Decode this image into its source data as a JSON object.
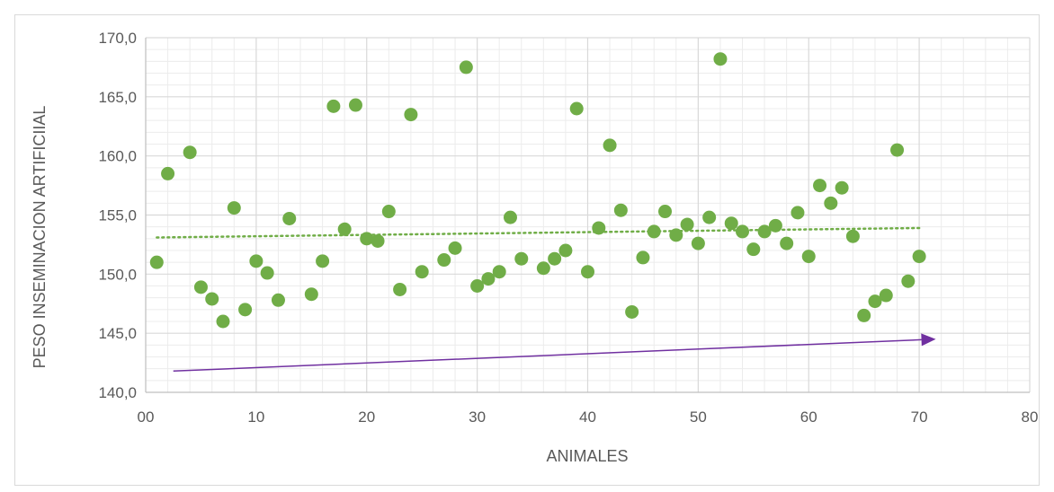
{
  "chart_data": {
    "type": "scatter",
    "xlabel": "ANIMALES",
    "ylabel": "PESO INSEMINACION ARTIFICIIAL",
    "xlim": [
      0,
      80
    ],
    "ylim": [
      140,
      170
    ],
    "x_ticks": [
      "00",
      "10",
      "20",
      "30",
      "40",
      "50",
      "60",
      "70",
      "80"
    ],
    "y_ticks": [
      "140,0",
      "145,0",
      "150,0",
      "155,0",
      "160,0",
      "165,0",
      "170,0"
    ],
    "grid": true,
    "legend": "none",
    "colors": {
      "points": "#70ad47",
      "trendline": "#70ad47",
      "arrow": "#7030a0",
      "grid": "#d9d9d9",
      "axis_text": "#595959"
    },
    "series": [
      {
        "x": [
          1,
          2,
          4,
          5,
          6,
          7,
          8,
          9,
          10,
          11,
          12,
          13,
          15,
          16,
          17,
          18,
          19,
          20,
          21,
          22,
          23,
          24,
          25,
          27,
          28,
          29,
          30,
          31,
          32,
          33,
          34,
          36,
          37,
          38,
          39,
          40,
          41,
          42,
          43,
          44,
          45,
          46,
          47,
          48,
          49,
          50,
          51,
          52,
          53,
          54,
          55,
          56,
          57,
          58,
          59,
          60,
          61,
          62,
          63,
          64,
          65,
          66,
          67,
          68,
          69,
          70
        ],
        "y": [
          151.0,
          158.5,
          160.3,
          148.9,
          147.9,
          146.0,
          155.6,
          147.0,
          151.1,
          150.1,
          147.8,
          154.7,
          148.3,
          151.1,
          164.2,
          153.8,
          164.3,
          153.0,
          152.8,
          155.3,
          148.7,
          163.5,
          150.2,
          151.2,
          152.2,
          167.5,
          149.0,
          149.6,
          150.2,
          154.8,
          151.3,
          150.5,
          151.3,
          152.0,
          164.0,
          150.2,
          153.9,
          160.9,
          155.4,
          146.8,
          151.4,
          153.6,
          155.3,
          153.3,
          154.2,
          152.6,
          154.8,
          168.2,
          154.3,
          153.6,
          152.1,
          153.6,
          154.1,
          152.6,
          155.2,
          151.5,
          157.5,
          156.0,
          157.3,
          153.2,
          146.5,
          147.7,
          148.2,
          160.5,
          149.4,
          151.5
        ]
      }
    ],
    "trendline": {
      "x": [
        1,
        70
      ],
      "y": [
        153.1,
        153.9
      ]
    },
    "arrow": {
      "x": [
        2.5,
        71.5
      ],
      "y": [
        141.8,
        144.5
      ]
    }
  }
}
